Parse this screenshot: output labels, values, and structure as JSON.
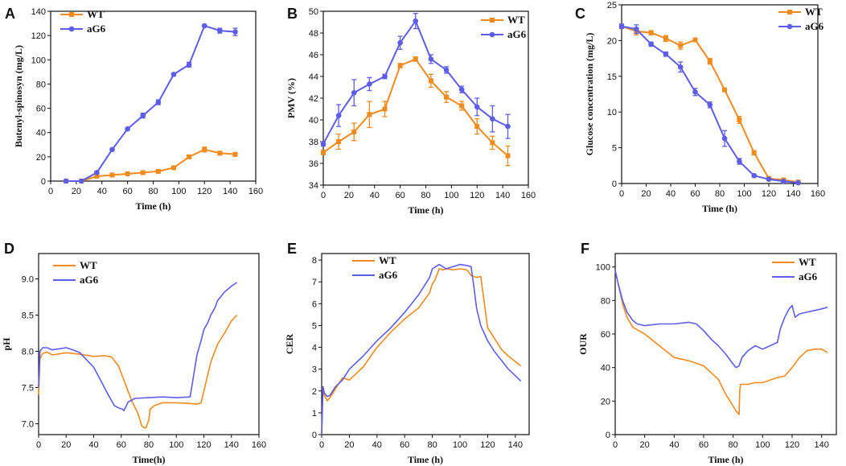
{
  "colors": {
    "WT": "#F28A1E",
    "aG6": "#5D5DEB"
  },
  "chart_data": [
    {
      "panel": "A",
      "type": "line",
      "markers": true,
      "xlabel": "Time (h)",
      "ylabel": "Butenyl-spinosyn (mg/L)",
      "xlim": [
        0,
        160
      ],
      "ylim": [
        0,
        140
      ],
      "xticks": [
        "0",
        "20",
        "40",
        "60",
        "80",
        "100",
        "120",
        "140",
        "160"
      ],
      "yticks": [
        "0",
        "20",
        "40",
        "60",
        "80",
        "100",
        "120",
        "140"
      ],
      "legend": "top-left",
      "series": [
        {
          "name": "WT",
          "marker": "square",
          "x": [
            12,
            24,
            36,
            48,
            60,
            72,
            84,
            96,
            108,
            120,
            132,
            144
          ],
          "y": [
            0,
            0,
            4,
            5,
            6,
            7,
            8,
            11,
            20,
            26,
            23,
            22
          ],
          "err": [
            0,
            0,
            0.5,
            1,
            0.5,
            0.5,
            1,
            1,
            1,
            2,
            1.5,
            1.5
          ]
        },
        {
          "name": "aG6",
          "marker": "circle",
          "x": [
            12,
            24,
            36,
            48,
            60,
            72,
            84,
            96,
            108,
            120,
            132,
            144
          ],
          "y": [
            0,
            0,
            7,
            26,
            43,
            54,
            65,
            88,
            96,
            128,
            124,
            123
          ],
          "err": [
            0,
            0,
            1,
            1,
            1,
            2,
            2,
            1,
            2,
            1,
            2,
            3
          ]
        }
      ]
    },
    {
      "panel": "B",
      "type": "line",
      "markers": true,
      "xlabel": "Time (h)",
      "ylabel": "PMV (%)",
      "xlim": [
        0,
        160
      ],
      "ylim": [
        34,
        50
      ],
      "xticks": [
        "0",
        "20",
        "40",
        "60",
        "80",
        "100",
        "120",
        "140",
        "160"
      ],
      "yticks": [
        "34",
        "36",
        "38",
        "40",
        "42",
        "44",
        "46",
        "48",
        "50"
      ],
      "legend": "top-right",
      "series": [
        {
          "name": "WT",
          "marker": "square",
          "x": [
            0,
            12,
            24,
            36,
            48,
            60,
            72,
            84,
            96,
            108,
            120,
            132,
            144
          ],
          "y": [
            37,
            38,
            38.9,
            40.5,
            41,
            45,
            45.6,
            43.6,
            42.1,
            41.3,
            39.4,
            37.9,
            36.7
          ],
          "err": [
            0.2,
            0.7,
            0.8,
            1.2,
            0.7,
            0.2,
            0.2,
            0.6,
            0.5,
            0.4,
            0.7,
            0.6,
            0.9
          ]
        },
        {
          "name": "aG6",
          "marker": "circle",
          "x": [
            0,
            12,
            24,
            36,
            48,
            60,
            72,
            84,
            96,
            108,
            120,
            132,
            144
          ],
          "y": [
            37.8,
            40.4,
            42.5,
            43.3,
            44,
            47.1,
            49.1,
            45.6,
            44.6,
            42.8,
            41.2,
            40.1,
            39.4
          ],
          "err": [
            0.2,
            1,
            1.2,
            0.6,
            0.2,
            0.6,
            0.7,
            0.4,
            0.3,
            0.3,
            0.8,
            1.2,
            1.1
          ]
        }
      ]
    },
    {
      "panel": "C",
      "type": "line",
      "markers": true,
      "xlabel": "Time (h)",
      "ylabel": "Glucose concentration (mg/L)",
      "xlim": [
        0,
        160
      ],
      "ylim": [
        0,
        25
      ],
      "xticks": [
        "0",
        "20",
        "40",
        "60",
        "80",
        "100",
        "120",
        "140",
        "160"
      ],
      "yticks": [
        "0",
        "5",
        "10",
        "15",
        "20",
        "25"
      ],
      "legend": "top-right",
      "series": [
        {
          "name": "WT",
          "marker": "square",
          "x": [
            0,
            12,
            24,
            36,
            48,
            60,
            72,
            84,
            96,
            108,
            120,
            132,
            144
          ],
          "y": [
            22,
            21.3,
            21.1,
            20.3,
            19.3,
            20.1,
            17.1,
            13.1,
            8.9,
            4.3,
            0.7,
            0.5,
            0.2
          ],
          "err": [
            0.3,
            0.5,
            0.3,
            0.4,
            0.5,
            0.2,
            0.4,
            0.2,
            0.5,
            0.3,
            0.2,
            0.1,
            0.1
          ]
        },
        {
          "name": "aG6",
          "marker": "circle",
          "x": [
            0,
            12,
            24,
            36,
            48,
            60,
            72,
            84,
            96,
            108,
            120,
            132,
            144
          ],
          "y": [
            22,
            21.6,
            19.5,
            18.1,
            16.3,
            12.8,
            11,
            6.3,
            3.1,
            1.1,
            0.6,
            0.3,
            0.1
          ],
          "err": [
            0.3,
            0.6,
            0.3,
            0.3,
            0.7,
            0.5,
            0.4,
            1.1,
            0.4,
            0.2,
            0.1,
            0.1,
            0.1
          ]
        }
      ]
    },
    {
      "panel": "D",
      "type": "line",
      "markers": false,
      "xlabel": "Time(h)",
      "ylabel": "pH",
      "xlim": [
        0,
        160
      ],
      "ylim": [
        6.85,
        9.35
      ],
      "xticks": [
        "0",
        "20",
        "40",
        "60",
        "80",
        "100",
        "120",
        "140",
        "160"
      ],
      "yticks": [
        "7.0",
        "7.5",
        "8.0",
        "8.5",
        "9.0"
      ],
      "legend": "top-left",
      "series": [
        {
          "name": "WT",
          "x": [
            0,
            1,
            3,
            6,
            10,
            20,
            30,
            40,
            48,
            53,
            58,
            63,
            68,
            72,
            75,
            77,
            78,
            80,
            81,
            84,
            90,
            100,
            110,
            115,
            118,
            120,
            125,
            130,
            135,
            140,
            144
          ],
          "y": [
            7.4,
            7.9,
            7.97,
            7.99,
            7.95,
            7.98,
            7.96,
            7.93,
            7.94,
            7.92,
            7.8,
            7.55,
            7.3,
            7.15,
            6.97,
            6.94,
            6.95,
            7.05,
            7.2,
            7.25,
            7.29,
            7.29,
            7.28,
            7.27,
            7.29,
            7.45,
            7.85,
            8.1,
            8.25,
            8.42,
            8.5
          ]
        },
        {
          "name": "aG6",
          "x": [
            0,
            1,
            3,
            6,
            10,
            20,
            25,
            30,
            35,
            40,
            45,
            50,
            55,
            58,
            61,
            62,
            63,
            65,
            70,
            80,
            90,
            100,
            110,
            112,
            115,
            118,
            120,
            123,
            125,
            128,
            130,
            135,
            140,
            144
          ],
          "y": [
            7.5,
            8.0,
            8.05,
            8.05,
            8.02,
            8.05,
            8.02,
            7.98,
            7.88,
            7.78,
            7.6,
            7.42,
            7.25,
            7.22,
            7.2,
            7.18,
            7.22,
            7.3,
            7.35,
            7.36,
            7.37,
            7.36,
            7.37,
            7.6,
            7.95,
            8.15,
            8.3,
            8.4,
            8.5,
            8.6,
            8.7,
            8.82,
            8.9,
            8.95
          ]
        }
      ]
    },
    {
      "panel": "E",
      "type": "line",
      "markers": false,
      "xlabel": "Time (h)",
      "ylabel": "CER",
      "xlim": [
        0,
        150
      ],
      "ylim": [
        0,
        8.3
      ],
      "xticks": [
        "0",
        "20",
        "40",
        "60",
        "80",
        "100",
        "120",
        "140"
      ],
      "yticks": [
        "0",
        "1",
        "2",
        "3",
        "4",
        "5",
        "6",
        "7",
        "8"
      ],
      "legend": "top-center",
      "series": [
        {
          "name": "WT",
          "x": [
            0,
            1,
            2,
            4,
            6,
            10,
            15,
            20,
            25,
            30,
            40,
            50,
            60,
            70,
            78,
            80,
            82,
            85,
            88,
            90,
            95,
            100,
            105,
            108,
            110,
            112,
            115,
            120,
            125,
            130,
            135,
            140,
            144
          ],
          "y": [
            0,
            2.2,
            1.8,
            1.55,
            1.7,
            2.1,
            2.6,
            2.5,
            2.8,
            3.1,
            4.0,
            4.7,
            5.3,
            5.8,
            6.5,
            6.9,
            7.1,
            7.6,
            7.55,
            7.6,
            7.55,
            7.6,
            7.55,
            7.3,
            7.25,
            7.2,
            7.25,
            4.9,
            4.4,
            3.9,
            3.6,
            3.35,
            3.15
          ]
        },
        {
          "name": "aG6",
          "x": [
            0,
            1,
            2,
            4,
            6,
            10,
            15,
            20,
            25,
            30,
            40,
            50,
            60,
            70,
            78,
            80,
            85,
            90,
            95,
            100,
            105,
            108,
            110,
            112,
            115,
            120,
            125,
            130,
            135,
            140,
            144
          ],
          "y": [
            0,
            2.2,
            1.9,
            1.75,
            1.8,
            2.2,
            2.5,
            3.0,
            3.3,
            3.6,
            4.3,
            4.9,
            5.6,
            6.4,
            7.2,
            7.6,
            7.8,
            7.6,
            7.7,
            7.8,
            7.75,
            7.7,
            6.8,
            5.8,
            5.0,
            4.3,
            3.8,
            3.4,
            3.0,
            2.7,
            2.45
          ]
        }
      ]
    },
    {
      "panel": "F",
      "type": "line",
      "markers": false,
      "xlabel": "Time (h)",
      "ylabel": "OUR",
      "xlim": [
        0,
        150
      ],
      "ylim": [
        0,
        108
      ],
      "xticks": [
        "0",
        "20",
        "40",
        "60",
        "80",
        "100",
        "120",
        "140"
      ],
      "yticks": [
        "0",
        "20",
        "40",
        "60",
        "80",
        "100"
      ],
      "legend": "top-right",
      "series": [
        {
          "name": "WT",
          "x": [
            0,
            2,
            5,
            8,
            12,
            16,
            20,
            30,
            40,
            50,
            60,
            70,
            75,
            80,
            82,
            84,
            84.5,
            85,
            90,
            95,
            100,
            110,
            115,
            120,
            125,
            130,
            135,
            140,
            144
          ],
          "y": [
            98,
            90,
            78,
            70,
            64,
            62,
            60,
            53,
            46,
            44,
            41,
            33,
            24,
            17,
            14,
            12,
            26,
            30,
            30,
            31,
            31,
            34,
            35,
            40,
            46,
            50,
            51,
            51,
            49
          ]
        },
        {
          "name": "aG6",
          "x": [
            0,
            2,
            5,
            8,
            12,
            15,
            20,
            30,
            40,
            50,
            55,
            60,
            65,
            70,
            75,
            80,
            82,
            84,
            86,
            90,
            95,
            100,
            105,
            110,
            112,
            115,
            118,
            120,
            122,
            125,
            130,
            135,
            140,
            144
          ],
          "y": [
            98,
            90,
            80,
            73,
            68,
            66,
            65,
            66,
            66,
            67,
            66,
            62,
            57,
            53,
            48,
            42,
            40,
            41,
            46,
            50,
            53,
            51,
            53,
            55,
            63,
            70,
            75,
            77,
            70,
            72,
            73,
            74,
            75,
            76
          ]
        }
      ]
    }
  ]
}
